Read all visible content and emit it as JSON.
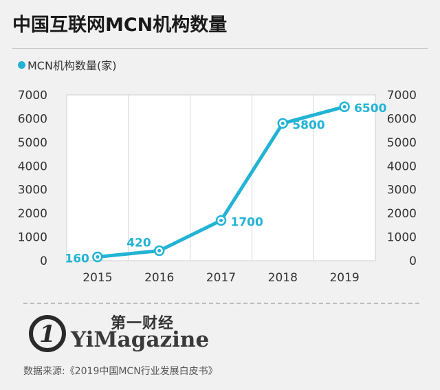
{
  "header": {
    "title": "中国互联网MCN机构数量"
  },
  "colors": {
    "accent": "#22b3d5",
    "background": "#f1f1f1",
    "plot_bg": "#ffffff",
    "grid": "#d6d6d6"
  },
  "chart_data": {
    "type": "line",
    "title": "中国互联网MCN机构数量",
    "x": [
      "2015",
      "2016",
      "2017",
      "2018",
      "2019"
    ],
    "series": [
      {
        "name": "MCN机构数量(家)",
        "values": [
          160,
          420,
          1700,
          5800,
          6500
        ],
        "data_labels": [
          "160",
          "420",
          "1700",
          "5800",
          "6500"
        ]
      }
    ],
    "ylim": [
      0,
      7000
    ],
    "yticks": [
      "0",
      "1000",
      "2000",
      "3000",
      "4000",
      "5000",
      "6000",
      "7000"
    ],
    "xlabel": "",
    "ylabel": "",
    "grid": "vertical",
    "legend": "top-left",
    "dual_y_axis": true
  },
  "footer": {
    "logo_mark": "1",
    "brand_cn": "第一财经",
    "brand_en": "YiMagazine",
    "logo_icon": "yicai-logo-icon",
    "source": "数据来源:《2019中国MCN行业发展白皮书》"
  }
}
